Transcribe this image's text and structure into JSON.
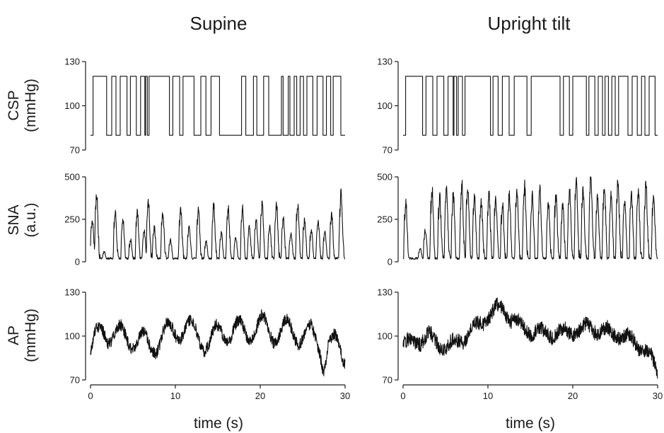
{
  "figure": {
    "columns": [
      {
        "title": "Supine"
      },
      {
        "title": "Upright tilt"
      }
    ],
    "rows": [
      {
        "label_line1": "CSP",
        "label_line2": "(mmHg)"
      },
      {
        "label_line1": "SNA",
        "label_line2": "(a.u.)"
      },
      {
        "label_line1": "AP",
        "label_line2": "(mmHg)"
      }
    ],
    "xlabel": "time (s)"
  },
  "chart_data": [
    {
      "type": "line",
      "title": "Supine",
      "ylabel": "CSP (mmHg)",
      "xlabel": "",
      "ylim": [
        70,
        130
      ],
      "yticks": [
        70,
        100,
        130
      ],
      "xlim": [
        0,
        30
      ],
      "xticks": [],
      "series": [
        {
          "kind": "step",
          "levels": [
            80,
            120
          ],
          "start": 80,
          "transitions": [
            0.3,
            1.9,
            2.5,
            3.0,
            3.5,
            4.3,
            4.7,
            5.4,
            5.9,
            6.4,
            6.5,
            6.7,
            6.9,
            9.3,
            9.7,
            10.5,
            10.9,
            12.2,
            13.0,
            13.6,
            14.2,
            15.2,
            17.8,
            18.3,
            19.2,
            19.6,
            20.4,
            21.0,
            22.5,
            22.7,
            23.3,
            23.5,
            24.0,
            24.3,
            24.7,
            25.1,
            25.5,
            26.2,
            26.7,
            27.4,
            27.8,
            28.3,
            28.6,
            29.5
          ]
        }
      ]
    },
    {
      "type": "line",
      "title": "Upright tilt",
      "ylabel": "CSP (mmHg)",
      "xlabel": "",
      "ylim": [
        70,
        130
      ],
      "yticks": [
        70,
        100,
        130
      ],
      "xlim": [
        0,
        30
      ],
      "xticks": [],
      "series": [
        {
          "kind": "step",
          "levels": [
            80,
            120
          ],
          "start": 80,
          "transitions": [
            0.3,
            2.3,
            2.7,
            3.5,
            4.0,
            4.8,
            5.3,
            5.9,
            6.0,
            6.3,
            6.5,
            7.0,
            7.3,
            10.3,
            10.6,
            11.2,
            11.7,
            12.5,
            13.1,
            14.6,
            15.1,
            18.5,
            18.9,
            19.6,
            20.0,
            21.6,
            21.9,
            22.6,
            23.0,
            23.5,
            23.8,
            24.2,
            24.6,
            25.0,
            25.4,
            26.5,
            27.0,
            27.6,
            28.1,
            28.5,
            29.0,
            29.7
          ]
        }
      ]
    },
    {
      "type": "line",
      "title": "",
      "ylabel": "SNA (a.u.)",
      "xlabel": "",
      "ylim": [
        0,
        500
      ],
      "yticks": [
        0,
        250,
        500
      ],
      "xlim": [
        0,
        30
      ],
      "xticks": [],
      "series": [
        {
          "kind": "bursts",
          "baseline": 20,
          "noise": 12,
          "bursts": [
            [
              0.1,
              250
            ],
            [
              0.6,
              400
            ],
            [
              1.5,
              60
            ],
            [
              2.8,
              290
            ],
            [
              3.7,
              250
            ],
            [
              4.6,
              130
            ],
            [
              5.4,
              300
            ],
            [
              6.2,
              180
            ],
            [
              6.7,
              350
            ],
            [
              7.4,
              200
            ],
            [
              8.4,
              280
            ],
            [
              9.3,
              130
            ],
            [
              10.5,
              320
            ],
            [
              11.5,
              200
            ],
            [
              12.6,
              300
            ],
            [
              13.5,
              120
            ],
            [
              14.4,
              330
            ],
            [
              15.3,
              170
            ],
            [
              16.1,
              320
            ],
            [
              17.0,
              140
            ],
            [
              17.8,
              320
            ],
            [
              18.6,
              200
            ],
            [
              19.4,
              240
            ],
            [
              20.1,
              340
            ],
            [
              21.0,
              200
            ],
            [
              21.8,
              340
            ],
            [
              22.6,
              260
            ],
            [
              23.5,
              170
            ],
            [
              24.3,
              330
            ],
            [
              25.1,
              240
            ],
            [
              25.9,
              190
            ],
            [
              26.7,
              240
            ],
            [
              27.5,
              170
            ],
            [
              28.3,
              280
            ],
            [
              29.4,
              400
            ]
          ]
        }
      ]
    },
    {
      "type": "line",
      "title": "",
      "ylabel": "SNA (a.u.)",
      "xlabel": "",
      "ylim": [
        0,
        500
      ],
      "yticks": [
        0,
        250,
        500
      ],
      "xlim": [
        0,
        30
      ],
      "xticks": [],
      "series": [
        {
          "kind": "bursts",
          "baseline": 20,
          "noise": 12,
          "bursts": [
            [
              0.2,
              350
            ],
            [
              1.9,
              80
            ],
            [
              2.5,
              190
            ],
            [
              3.3,
              420
            ],
            [
              4.2,
              380
            ],
            [
              5.0,
              440
            ],
            [
              5.8,
              400
            ],
            [
              6.8,
              460
            ],
            [
              7.5,
              440
            ],
            [
              8.3,
              380
            ],
            [
              9.1,
              350
            ],
            [
              10.0,
              400
            ],
            [
              10.8,
              370
            ],
            [
              11.6,
              340
            ],
            [
              12.4,
              390
            ],
            [
              13.3,
              410
            ],
            [
              14.2,
              450
            ],
            [
              15.1,
              390
            ],
            [
              16.0,
              420
            ],
            [
              17.0,
              350
            ],
            [
              17.9,
              390
            ],
            [
              18.7,
              340
            ],
            [
              19.5,
              430
            ],
            [
              20.3,
              460
            ],
            [
              21.1,
              420
            ],
            [
              22.0,
              500
            ],
            [
              22.8,
              380
            ],
            [
              23.6,
              450
            ],
            [
              24.4,
              400
            ],
            [
              25.2,
              470
            ],
            [
              26.0,
              360
            ],
            [
              26.8,
              400
            ],
            [
              27.6,
              420
            ],
            [
              28.5,
              460
            ],
            [
              29.4,
              380
            ]
          ]
        }
      ]
    },
    {
      "type": "line",
      "title": "",
      "ylabel": "AP (mmHg)",
      "xlabel": "time (s)",
      "ylim": [
        70,
        130
      ],
      "yticks": [
        70,
        100,
        130
      ],
      "xlim": [
        0,
        30
      ],
      "xticks": [
        0,
        10,
        20,
        30
      ],
      "series": [
        {
          "kind": "pressure",
          "noise": 4,
          "trend": [
            [
              0,
              88
            ],
            [
              0.5,
              95
            ],
            [
              1.5,
              105
            ],
            [
              3,
              100
            ],
            [
              5,
              99
            ],
            [
              7,
              93
            ],
            [
              8.5,
              100
            ],
            [
              10,
              104
            ],
            [
              11,
              106
            ],
            [
              12.5,
              101
            ],
            [
              14,
              95
            ],
            [
              15.5,
              104
            ],
            [
              17,
              103
            ],
            [
              18.5,
              103
            ],
            [
              20,
              107
            ],
            [
              21.5,
              103
            ],
            [
              23,
              104
            ],
            [
              24.5,
              102
            ],
            [
              26,
              100
            ],
            [
              27,
              95
            ],
            [
              27.5,
              82
            ],
            [
              28,
              93
            ],
            [
              29,
              93
            ],
            [
              30,
              88
            ]
          ],
          "osc_amp": 8,
          "osc_period": 2.8
        }
      ]
    },
    {
      "type": "line",
      "title": "",
      "ylabel": "AP (mmHg)",
      "xlabel": "time (s)",
      "ylim": [
        70,
        130
      ],
      "yticks": [
        70,
        100,
        130
      ],
      "xlim": [
        0,
        30
      ],
      "xticks": [
        0,
        10,
        20,
        30
      ],
      "series": [
        {
          "kind": "pressure",
          "noise": 5,
          "trend": [
            [
              0,
              94
            ],
            [
              2,
              97
            ],
            [
              3,
              100
            ],
            [
              5,
              92
            ],
            [
              7,
              98
            ],
            [
              9,
              108
            ],
            [
              10.5,
              116
            ],
            [
              11.5,
              120
            ],
            [
              12.5,
              113
            ],
            [
              14,
              106
            ],
            [
              16,
              102
            ],
            [
              18,
              102
            ],
            [
              20,
              103
            ],
            [
              22,
              106
            ],
            [
              24,
              103
            ],
            [
              26,
              100
            ],
            [
              27.5,
              95
            ],
            [
              29,
              88
            ],
            [
              30,
              75
            ]
          ],
          "osc_amp": 3,
          "osc_period": 2.6
        }
      ]
    }
  ]
}
